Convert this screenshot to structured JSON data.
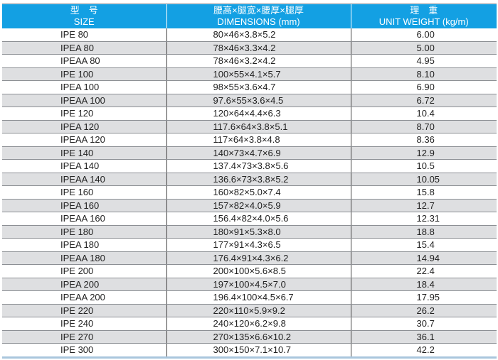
{
  "header": {
    "size_cn": "型　号",
    "size_en": "SIZE",
    "dim_cn": "腰高×腿宽×腰厚×腿厚",
    "dim_en": "DIMENSIONS (mm)",
    "weight_cn": "理　重",
    "weight_en": "UNIT WEIGHT (kg/m)"
  },
  "rows": [
    {
      "size": "IPE 80",
      "dim": "80×46×3.8×5.2",
      "weight": "6.00"
    },
    {
      "size": "IPEA 80",
      "dim": "78×46×3.3×4.2",
      "weight": "5.00"
    },
    {
      "size": "IPEAA 80",
      "dim": "78×46×3.2×4.2",
      "weight": "4.95"
    },
    {
      "size": "IPE 100",
      "dim": "100×55×4.1×5.7",
      "weight": "8.10"
    },
    {
      "size": "IPEA 100",
      "dim": "98×55×3.6×4.7",
      "weight": "6.90"
    },
    {
      "size": "IPEAA 100",
      "dim": "97.6×55×3.6×4.5",
      "weight": "6.72"
    },
    {
      "size": "IPE 120",
      "dim": "120×64×4.4×6.3",
      "weight": "10.4"
    },
    {
      "size": "IPEA 120",
      "dim": "117.6×64×3.8×5.1",
      "weight": "8.70"
    },
    {
      "size": "IPEAA 120",
      "dim": "117×64×3.8×4.8",
      "weight": "8.36"
    },
    {
      "size": "IPE 140",
      "dim": "140×73×4.7×6.9",
      "weight": "12.9"
    },
    {
      "size": "IPEA 140",
      "dim": "137.4×73×3.8×5.6",
      "weight": "10.5"
    },
    {
      "size": "IPEAA 140",
      "dim": "136.6×73×3.8×5.2",
      "weight": "10.05"
    },
    {
      "size": "IPE 160",
      "dim": "160×82×5.0×7.4",
      "weight": "15.8"
    },
    {
      "size": "IPEA 160",
      "dim": "157×82×4.0×5.9",
      "weight": "12.7"
    },
    {
      "size": "IPEAA 160",
      "dim": "156.4×82×4.0×5.6",
      "weight": "12.31"
    },
    {
      "size": "IPE 180",
      "dim": "180×91×5.3×8.0",
      "weight": "18.8"
    },
    {
      "size": "IPEA 180",
      "dim": "177×91×4.3×6.5",
      "weight": "15.4"
    },
    {
      "size": "IPEAA 180",
      "dim": "176.4×91×4.3×6.2",
      "weight": "14.94"
    },
    {
      "size": "IPE 200",
      "dim": "200×100×5.6×8.5",
      "weight": "22.4"
    },
    {
      "size": "IPEA 200",
      "dim": "197×100×4.5×7.0",
      "weight": "18.4"
    },
    {
      "size": "IPEAA 200",
      "dim": "196.4×100×4.5×6.7",
      "weight": "17.95"
    },
    {
      "size": "IPE 220",
      "dim": "220×110×5.9×9.2",
      "weight": "26.2"
    },
    {
      "size": "IPE 240",
      "dim": "240×120×6.2×9.8",
      "weight": "30.7"
    },
    {
      "size": "IPE 270",
      "dim": "270×135×6.6×10.2",
      "weight": "36.1"
    },
    {
      "size": "IPE 300",
      "dim": "300×150×7.1×10.7",
      "weight": "42.2"
    }
  ],
  "colors": {
    "header_bg": "#13a0e3",
    "alt_row": "#dedfe1"
  }
}
